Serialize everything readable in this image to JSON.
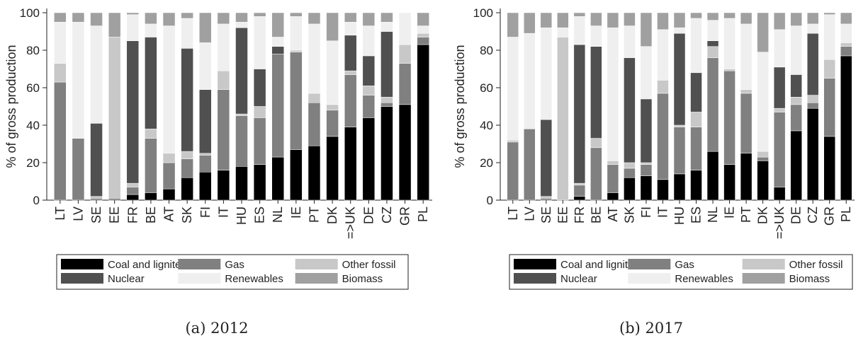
{
  "ylabel": "% of gross production",
  "y_ticks": [
    "0",
    "20",
    "40",
    "60",
    "80",
    "100"
  ],
  "legend": [
    {
      "key": "coal",
      "label": "Coal and lignite",
      "color": "#000000"
    },
    {
      "key": "gas",
      "label": "Gas",
      "color": "#808080"
    },
    {
      "key": "other_fossil",
      "label": "Other fossil",
      "color": "#c8c8c8"
    },
    {
      "key": "nuclear",
      "label": "Nuclear",
      "color": "#505050"
    },
    {
      "key": "renewables",
      "label": "Renewables",
      "color": "#efefef"
    },
    {
      "key": "biomass",
      "label": "Biomass",
      "color": "#a0a0a0"
    }
  ],
  "chart_data": [
    {
      "type": "bar",
      "stacked": true,
      "caption": "(a) 2012",
      "categories": [
        "LT",
        "LV",
        "SE",
        "EE",
        "FR",
        "BE",
        "AT",
        "SK",
        "FI",
        "IT",
        "HU",
        "ES",
        "NL",
        "IE",
        "PT",
        "DK",
        "=>UK",
        "DE",
        "CZ",
        "GR",
        "PL"
      ],
      "ylabel": "% of gross production",
      "ylim": [
        0,
        100
      ],
      "grid": false,
      "legend_position": "bottom",
      "series": [
        {
          "name": "Coal and lignite",
          "values": [
            0,
            0,
            0,
            0,
            3,
            4,
            6,
            12,
            15,
            16,
            18,
            19,
            23,
            27,
            29,
            34,
            39,
            44,
            50,
            51,
            83
          ]
        },
        {
          "name": "Gas",
          "values": [
            63,
            33,
            1,
            1,
            4,
            29,
            14,
            10,
            9,
            43,
            27,
            25,
            55,
            52,
            23,
            14,
            28,
            12,
            2,
            22,
            4
          ]
        },
        {
          "name": "Other fossil",
          "values": [
            10,
            0,
            1,
            86,
            2,
            5,
            5,
            4,
            1,
            10,
            1,
            6,
            0,
            1,
            5,
            3,
            2,
            5,
            3,
            10,
            2
          ]
        },
        {
          "name": "Nuclear",
          "values": [
            0,
            0,
            39,
            0,
            76,
            49,
            0,
            55,
            34,
            0,
            46,
            20,
            4,
            0,
            0,
            0,
            19,
            16,
            35,
            0,
            0
          ]
        },
        {
          "name": "Renewables",
          "values": [
            22,
            62,
            52,
            0,
            14,
            7,
            68,
            16,
            25,
            25,
            3,
            28,
            5,
            18,
            37,
            34,
            7,
            16,
            5,
            17,
            4
          ]
        },
        {
          "name": "Biomass",
          "values": [
            5,
            5,
            7,
            13,
            1,
            6,
            7,
            3,
            16,
            6,
            5,
            2,
            13,
            2,
            6,
            15,
            5,
            7,
            5,
            0,
            7
          ]
        }
      ]
    },
    {
      "type": "bar",
      "stacked": true,
      "caption": "(b) 2017",
      "categories": [
        "LT",
        "LV",
        "SE",
        "EE",
        "FR",
        "BE",
        "AT",
        "SK",
        "FI",
        "IT",
        "HU",
        "ES",
        "NL",
        "IE",
        "PT",
        "DK",
        "=>UK",
        "DE",
        "CZ",
        "GR",
        "PL"
      ],
      "ylabel": "% of gross production",
      "ylim": [
        0,
        100
      ],
      "grid": false,
      "legend_position": "bottom",
      "series": [
        {
          "name": "Coal and lignite",
          "values": [
            0,
            0,
            0,
            0,
            2,
            0,
            4,
            12,
            13,
            11,
            14,
            16,
            26,
            19,
            25,
            21,
            7,
            37,
            49,
            34,
            77
          ]
        },
        {
          "name": "Gas",
          "values": [
            31,
            38,
            1,
            0,
            6,
            28,
            15,
            5,
            6,
            46,
            25,
            23,
            50,
            50,
            32,
            2,
            40,
            14,
            3,
            31,
            5
          ]
        },
        {
          "name": "Other fossil",
          "values": [
            1,
            0,
            1,
            87,
            1,
            5,
            2,
            3,
            1,
            7,
            1,
            8,
            6,
            1,
            2,
            3,
            2,
            4,
            4,
            10,
            2
          ]
        },
        {
          "name": "Nuclear",
          "values": [
            0,
            0,
            41,
            0,
            74,
            49,
            0,
            56,
            34,
            0,
            49,
            21,
            3,
            0,
            0,
            0,
            22,
            12,
            33,
            0,
            0
          ]
        },
        {
          "name": "Renewables",
          "values": [
            55,
            51,
            49,
            5,
            15,
            11,
            71,
            17,
            28,
            27,
            3,
            29,
            11,
            27,
            35,
            53,
            20,
            26,
            5,
            24,
            10
          ]
        },
        {
          "name": "Biomass",
          "values": [
            13,
            11,
            8,
            8,
            2,
            7,
            8,
            7,
            18,
            9,
            8,
            3,
            4,
            3,
            6,
            21,
            9,
            7,
            6,
            1,
            6
          ]
        }
      ]
    }
  ]
}
